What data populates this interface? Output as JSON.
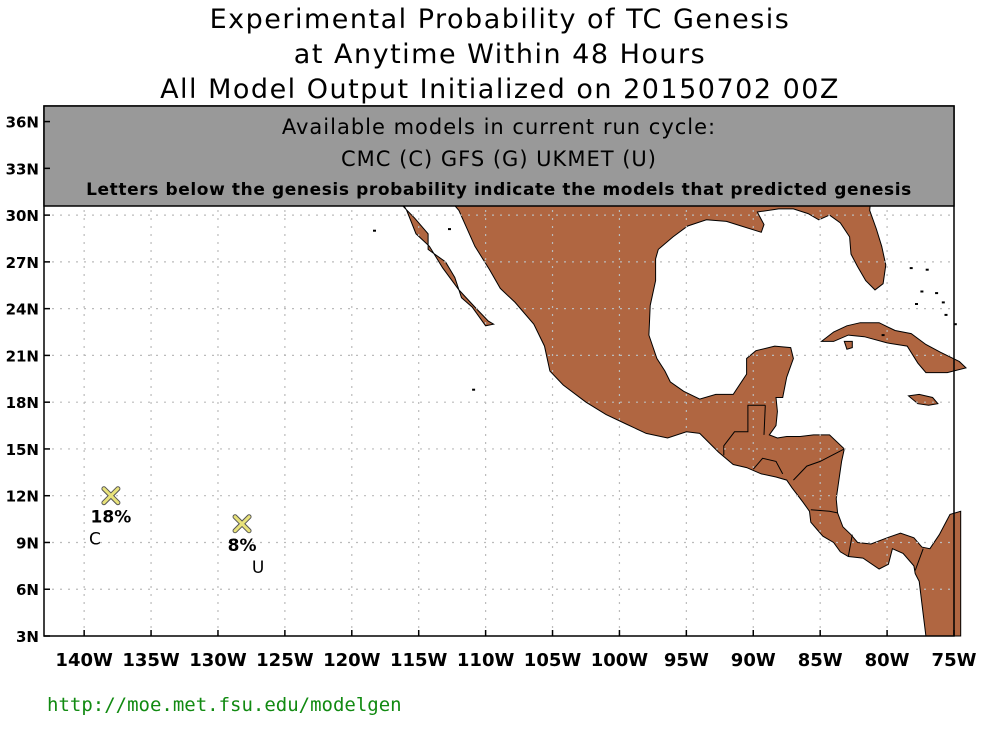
{
  "title": {
    "line1": "Experimental Probability of TC Genesis",
    "line2": "at Anytime Within 48 Hours",
    "line3": "All Model Output Initialized on 20150702 00Z"
  },
  "banner": {
    "line1": "Available models in current run cycle:",
    "line2": "CMC (C) GFS (G)  UKMET (U)",
    "line3": "Letters below the genesis probability indicate the models that predicted genesis"
  },
  "axes": {
    "lon_range": [
      -143,
      -75
    ],
    "lat_range": [
      3,
      37
    ],
    "lat_ticks": [
      {
        "value": 36,
        "label": "36N"
      },
      {
        "value": 33,
        "label": "33N"
      },
      {
        "value": 30,
        "label": "30N"
      },
      {
        "value": 27,
        "label": "27N"
      },
      {
        "value": 24,
        "label": "24N"
      },
      {
        "value": 21,
        "label": "21N"
      },
      {
        "value": 18,
        "label": "18N"
      },
      {
        "value": 15,
        "label": "15N"
      },
      {
        "value": 12,
        "label": "12N"
      },
      {
        "value": 9,
        "label": "9N"
      },
      {
        "value": 6,
        "label": "6N"
      },
      {
        "value": 3,
        "label": "3N"
      }
    ],
    "lon_ticks": [
      {
        "value": -140,
        "label": "140W"
      },
      {
        "value": -135,
        "label": "135W"
      },
      {
        "value": -130,
        "label": "130W"
      },
      {
        "value": -125,
        "label": "125W"
      },
      {
        "value": -120,
        "label": "120W"
      },
      {
        "value": -115,
        "label": "115W"
      },
      {
        "value": -110,
        "label": "110W"
      },
      {
        "value": -105,
        "label": "105W"
      },
      {
        "value": -100,
        "label": "100W"
      },
      {
        "value": -95,
        "label": "95W"
      },
      {
        "value": -90,
        "label": "90W"
      },
      {
        "value": -85,
        "label": "85W"
      },
      {
        "value": -80,
        "label": "80W"
      },
      {
        "value": -75,
        "label": "75W"
      }
    ]
  },
  "genesis_points": [
    {
      "lon": -138.0,
      "lat": 12.0,
      "probability": "18%",
      "models": "C"
    },
    {
      "lon": -128.2,
      "lat": 10.2,
      "probability": "8%",
      "models": "U"
    }
  ],
  "colors": {
    "land": "#b06641",
    "banner": "#999999",
    "marker": "#e8e27a",
    "grid": "#bbbbbb",
    "footer": "#118a11"
  },
  "footer": {
    "url": "http://moe.met.fsu.edu/modelgen"
  }
}
